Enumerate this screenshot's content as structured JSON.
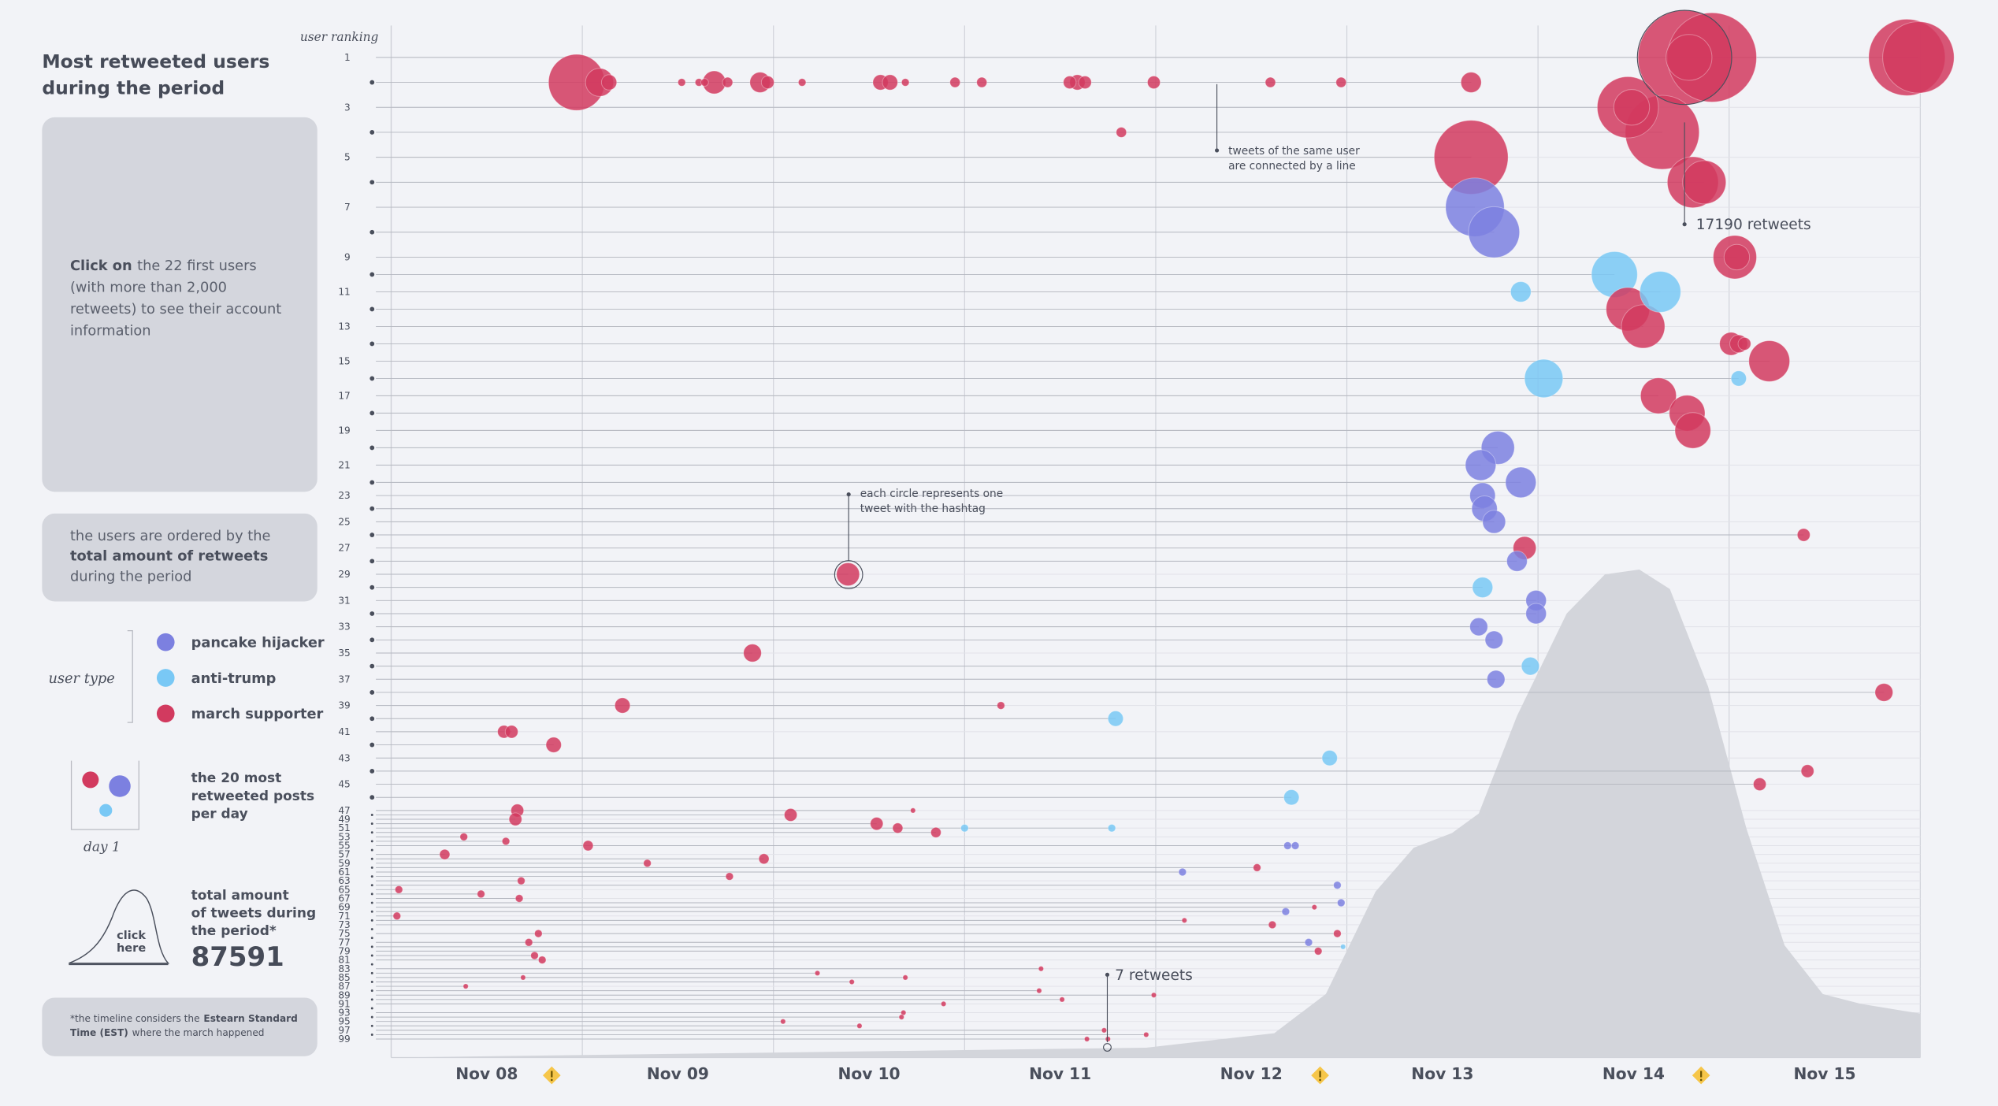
{
  "sidebar": {
    "title": [
      "Most retweeted users",
      "during the period"
    ],
    "click_box": {
      "bold": "Click on",
      "lines": [
        "the 22 first users",
        "(with more than 2,000",
        "retweets) to see their account",
        "information"
      ]
    },
    "order_box": {
      "line1": "the users are ordered by the",
      "bold": "total amount of retweets",
      "line3": "during the period"
    },
    "legend_title": "user type",
    "posts_legend": {
      "lines": [
        "the 20 most",
        "retweeted posts",
        "per day"
      ],
      "day": "day 1"
    },
    "total": {
      "lines": [
        "total amount",
        "of tweets during",
        "the period*"
      ],
      "value": 87591,
      "click": [
        "click",
        "here"
      ]
    },
    "footnote": {
      "a": "*the timeline considers the",
      "b": "Estearn Standard",
      "c": "Time (EST)",
      "d": "where the march happened"
    }
  },
  "chart_data": {
    "type": "scatter",
    "y_label": "user ranking",
    "xlim": [
      8,
      16
    ],
    "xticks": [
      {
        "value": 8,
        "label": "Nov 08"
      },
      {
        "value": 9,
        "label": "Nov 09"
      },
      {
        "value": 10,
        "label": "Nov 10"
      },
      {
        "value": 11,
        "label": "Nov 11"
      },
      {
        "value": 12,
        "label": "Nov 12"
      },
      {
        "value": 13,
        "label": "Nov 13"
      },
      {
        "value": 14,
        "label": "Nov 14"
      },
      {
        "value": 15,
        "label": "Nov 15"
      }
    ],
    "ylim": [
      1,
      99
    ],
    "yticks": [
      1,
      3,
      5,
      7,
      9,
      11,
      13,
      15,
      17,
      19,
      21,
      23,
      25,
      27,
      29,
      31,
      33,
      35,
      37,
      39,
      41,
      43,
      45,
      47,
      49,
      51,
      53,
      55,
      57,
      59,
      61,
      63,
      65,
      67,
      69,
      71,
      73,
      75,
      77,
      79,
      81,
      83,
      85,
      87,
      89,
      91,
      93,
      95,
      97,
      99
    ],
    "annotations": {
      "connected": [
        "tweets of the same user",
        "are connected by a line"
      ],
      "circle": [
        "each circle represents one",
        "tweet with the hashtag"
      ],
      "max": "17190 retweets",
      "min": "7 retweets"
    },
    "tweet_volume": {
      "x": [
        8,
        11.95,
        12.62,
        12.89,
        13.15,
        13.35,
        13.55,
        13.69,
        13.89,
        14.15,
        14.35,
        14.53,
        14.69,
        14.89,
        15.09,
        15.29,
        15.49,
        15.69,
        16
      ],
      "values": [
        0,
        2,
        5,
        13,
        34,
        43,
        46,
        50,
        70,
        91,
        99,
        100,
        96,
        76,
        47,
        23,
        13,
        11,
        9
      ]
    },
    "series": [
      {
        "name": "pancake hijacker",
        "color": "#7c80e0",
        "x": [
          13.67,
          13.77,
          13.79,
          13.7,
          13.91,
          13.71,
          13.72,
          13.77,
          13.89,
          13.99,
          13.99,
          13.69,
          13.77,
          13.78,
          12.69,
          12.73,
          12.14,
          12.95,
          12.97,
          12.68,
          12.8
        ],
        "values": [
          7,
          8,
          20,
          21,
          22,
          23,
          24,
          25,
          28,
          31,
          32,
          33,
          34,
          37,
          55,
          55,
          61,
          64,
          68,
          70,
          77
        ],
        "sizes": [
          6356,
          4720,
          1853,
          1549,
          1549,
          1024,
          1024,
          803,
          609,
          609,
          609,
          441,
          441,
          441,
          40,
          40,
          40,
          40,
          40,
          40,
          40
        ]
      },
      {
        "name": "anti-trump",
        "color": "#79c8f5",
        "x": [
          14.4,
          13.91,
          14.64,
          14.03,
          15.05,
          13.71,
          13.96,
          11.79,
          12.91,
          12.71,
          11.0,
          11.77,
          12.98
        ],
        "values": [
          10,
          11,
          11,
          16,
          16,
          30,
          36,
          40,
          43,
          46,
          51,
          51,
          78
        ],
        "sizes": [
          3768,
          609,
          2923,
          2545,
          300,
          609,
          441,
          300,
          300,
          300,
          40,
          40,
          7
        ]
      },
      {
        "name": "march supporter",
        "color": "#d23a5f",
        "x": [
          8.97,
          9.09,
          9.14,
          9.52,
          9.61,
          9.64,
          9.69,
          9.76,
          9.93,
          9.97,
          10.15,
          10.56,
          10.61,
          10.69,
          10.95,
          11.09,
          11.55,
          11.59,
          11.63,
          11.99,
          12.6,
          12.97,
          13.65,
          14.77,
          14.79,
          14.91,
          15.93,
          15.99,
          14.47,
          14.49,
          11.82,
          14.65,
          13.65,
          14.81,
          14.87,
          15.03,
          15.04,
          14.47,
          14.55,
          15.01,
          15.05,
          15.08,
          15.21,
          14.63,
          14.78,
          14.81,
          15.39,
          13.93,
          10.39,
          9.89,
          15.81,
          9.21,
          11.19,
          8.59,
          8.63,
          8.85,
          15.41,
          15.16,
          8.66,
          10.73,
          10.09,
          8.65,
          10.54,
          10.65,
          10.85,
          8.38,
          8.6,
          9.03,
          8.28,
          9.95,
          9.34,
          12.53,
          9.77,
          8.68,
          8.04,
          8.47,
          8.67,
          12.83,
          8.03,
          12.15,
          12.61,
          8.77,
          12.95,
          8.72,
          12.85,
          8.75,
          8.79,
          11.4,
          10.23,
          8.69,
          10.69,
          10.41,
          8.39,
          11.39,
          11.99,
          11.51,
          10.89,
          10.68,
          10.67,
          10.05,
          10.45,
          11.73,
          11.95,
          11.64,
          11.75
        ],
        "values": [
          2,
          2,
          2,
          2,
          2,
          2,
          2,
          2,
          2,
          2,
          2,
          2,
          2,
          2,
          2,
          2,
          2,
          2,
          2,
          2,
          2,
          2,
          2,
          1,
          1,
          1,
          1,
          1,
          3,
          3,
          4,
          4,
          5,
          6,
          6,
          9,
          9,
          12,
          13,
          14,
          14,
          14,
          15,
          17,
          18,
          19,
          26,
          27,
          29,
          35,
          38,
          39,
          39,
          41,
          41,
          42,
          44,
          45,
          47,
          47,
          48,
          49,
          50,
          51,
          52,
          53,
          54,
          55,
          57,
          58,
          59,
          60,
          62,
          63,
          65,
          66,
          67,
          69,
          71,
          72,
          73,
          75,
          75,
          77,
          79,
          80,
          81,
          83,
          84,
          85,
          85,
          86,
          87,
          88,
          89,
          90,
          91,
          93,
          94,
          95,
          96,
          97,
          98,
          99,
          99
        ],
        "sizes": [
          5785,
          1272,
          300,
          40,
          40,
          40,
          803,
          100,
          609,
          187,
          40,
          300,
          300,
          40,
          100,
          100,
          187,
          300,
          187,
          187,
          100,
          100,
          609,
          17190,
          3768,
          15320,
          11100,
          9625,
          6955,
          2185,
          100,
          10350,
          10350,
          4720,
          3331,
          3331,
          1024,
          3331,
          3331,
          803,
          441,
          187,
          2923,
          2185,
          2185,
          2185,
          187,
          803,
          803,
          441,
          441,
          300,
          40,
          187,
          187,
          300,
          187,
          187,
          187,
          7,
          187,
          187,
          187,
          100,
          100,
          40,
          40,
          100,
          100,
          100,
          40,
          40,
          40,
          40,
          40,
          40,
          40,
          7,
          40,
          7,
          40,
          40,
          40,
          40,
          40,
          40,
          40,
          7,
          7,
          7,
          7,
          7,
          7,
          7,
          7,
          7,
          7,
          7,
          7,
          7,
          7,
          7,
          7,
          7,
          7
        ]
      }
    ]
  }
}
